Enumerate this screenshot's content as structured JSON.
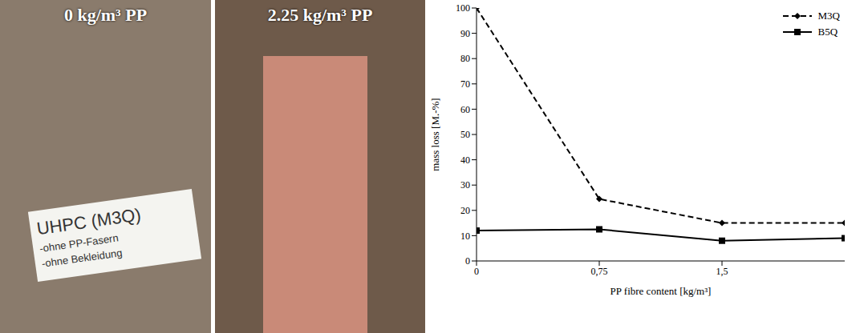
{
  "photos": [
    {
      "caption": "0 kg/m³ PP",
      "sign": [
        "UHPC (M3Q)",
        "-ohne PP-Fasern",
        "-ohne Bekleidung"
      ]
    },
    {
      "caption": "2.25 kg/m³ PP"
    }
  ],
  "chart_data": {
    "type": "line",
    "x_label": "PP fibre content [kg/m³]",
    "y_label": "mass loss [M.-%]",
    "x": [
      0,
      0.75,
      1.5,
      2.25
    ],
    "series": [
      {
        "name": "M3Q",
        "color": "#000000",
        "line_style": "dashed",
        "marker": "diamond",
        "values": [
          100,
          24.5,
          15,
          15
        ]
      },
      {
        "name": "B5Q",
        "color": "#000000",
        "line_style": "solid",
        "marker": "square",
        "values": [
          12,
          12.5,
          8,
          9
        ]
      }
    ],
    "xlim": [
      0,
      2.25
    ],
    "xticks": [
      0,
      {
        "value": 0.75,
        "label": "0,75"
      },
      {
        "value": 1.5,
        "label": "1,5"
      }
    ],
    "ylim": [
      0,
      100
    ],
    "yticks": [
      0,
      10,
      20,
      30,
      40,
      50,
      60,
      70,
      80,
      90,
      100
    ],
    "grid": false,
    "legend": "top-right"
  }
}
